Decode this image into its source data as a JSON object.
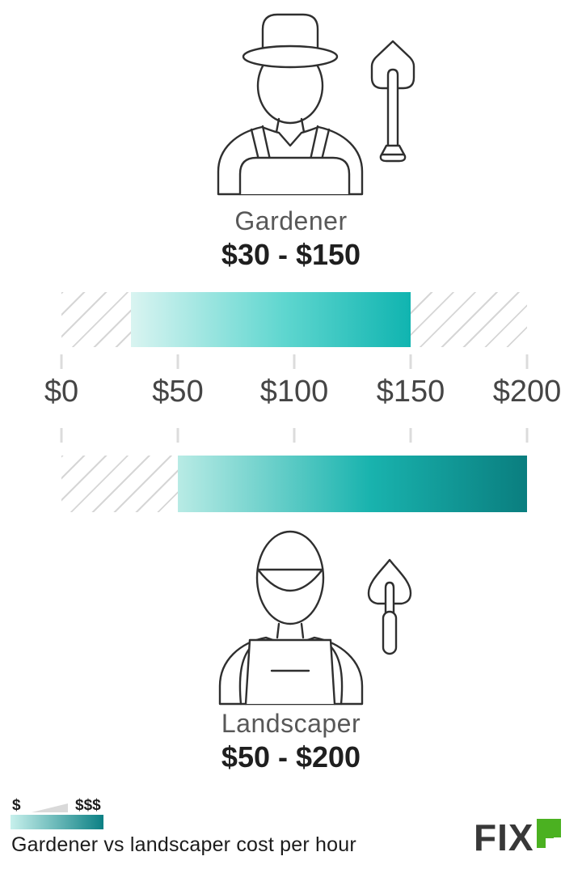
{
  "chart_data": {
    "type": "bar",
    "orientation": "horizontal",
    "title": "Gardener vs landscaper cost per hour",
    "x_axis": {
      "ticks": [
        "$0",
        "$50",
        "$100",
        "$150",
        "$200"
      ],
      "range": [
        0,
        200
      ]
    },
    "series": [
      {
        "name": "Gardener",
        "low": 30,
        "high": 150,
        "range_label": "$30 - $150"
      },
      {
        "name": "Landscaper",
        "low": 50,
        "high": 200,
        "range_label": "$50 - $200"
      }
    ],
    "layout": {
      "grid": false,
      "hatched_region": "outside value range",
      "legend_position": "bottom-left"
    },
    "style": {
      "bar_gradient_light": "#d9f4f1",
      "bar_gradient_teal": "#10b4b0",
      "bar_gradient_dark": "#0a7e7f",
      "hatch_color": "#d6d6d6",
      "tick_color": "#dcdcdc",
      "axis_label_color": "#454545"
    }
  },
  "icons": {
    "gardener": "gardener-person-with-hat-icon",
    "shovel": "shovel-icon",
    "landscaper": "landscaper-person-with-cap-icon",
    "trowel": "trowel-icon"
  },
  "legend": {
    "low_label": "$",
    "high_label": "$$$",
    "gradient_start": "#c7f0ec",
    "gradient_end": "#0b8084"
  },
  "footer": {
    "caption": "Gardener vs landscaper cost per hour"
  },
  "logo": {
    "dark_text": "FIX",
    "green_text": "r",
    "dark_color": "#383838",
    "green_color": "#4bb121"
  }
}
